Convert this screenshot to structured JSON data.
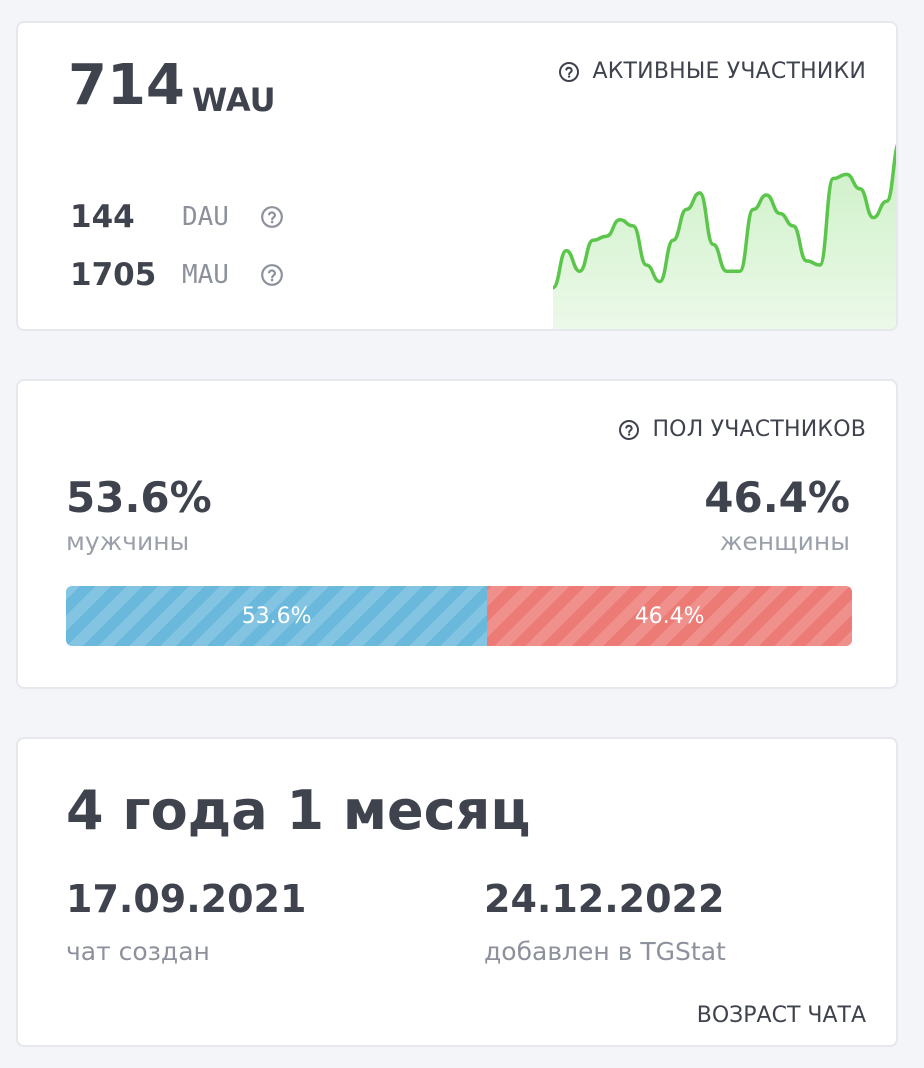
{
  "activity": {
    "wau_value": "714",
    "wau_label": "WAU",
    "section_title": "АКТИВНЫЕ УЧАСТНИКИ",
    "stats": [
      {
        "value": "144",
        "label": "DAU"
      },
      {
        "value": "1705",
        "label": "MAU"
      }
    ],
    "sparkline": {
      "line_color": "#5cc64c",
      "fill_color": "#c9efc2",
      "values": [
        0.22,
        0.4,
        0.3,
        0.45,
        0.47,
        0.55,
        0.52,
        0.33,
        0.25,
        0.45,
        0.6,
        0.68,
        0.43,
        0.3,
        0.3,
        0.6,
        0.67,
        0.58,
        0.52,
        0.35,
        0.33,
        0.75,
        0.77,
        0.7,
        0.56,
        0.64,
        0.93
      ]
    }
  },
  "gender": {
    "section_title": "ПОЛ УЧАСТНИКОВ",
    "male": {
      "percent_text": "53.6%",
      "label": "мужчины",
      "fraction": 0.536,
      "color": "#6ab9dc"
    },
    "female": {
      "percent_text": "46.4%",
      "label": "женщины",
      "fraction": 0.464,
      "color": "#ec7b76"
    }
  },
  "age": {
    "title": "4 года 1 месяц",
    "created_date": "17.09.2021",
    "created_label": "чат создан",
    "added_date": "24.12.2022",
    "added_label": "добавлен в TGStat",
    "section_title": "ВОЗРАСТ ЧАТА"
  }
}
